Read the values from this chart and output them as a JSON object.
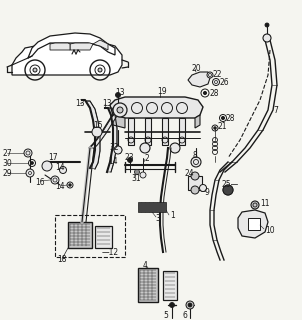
{
  "bg_color": "#f5f5f0",
  "line_color": "#1a1a1a",
  "fig_width": 3.02,
  "fig_height": 3.2,
  "dpi": 100,
  "gray_fill": "#c8c8c8",
  "light_fill": "#e8e8e8",
  "dark_fill": "#444444"
}
